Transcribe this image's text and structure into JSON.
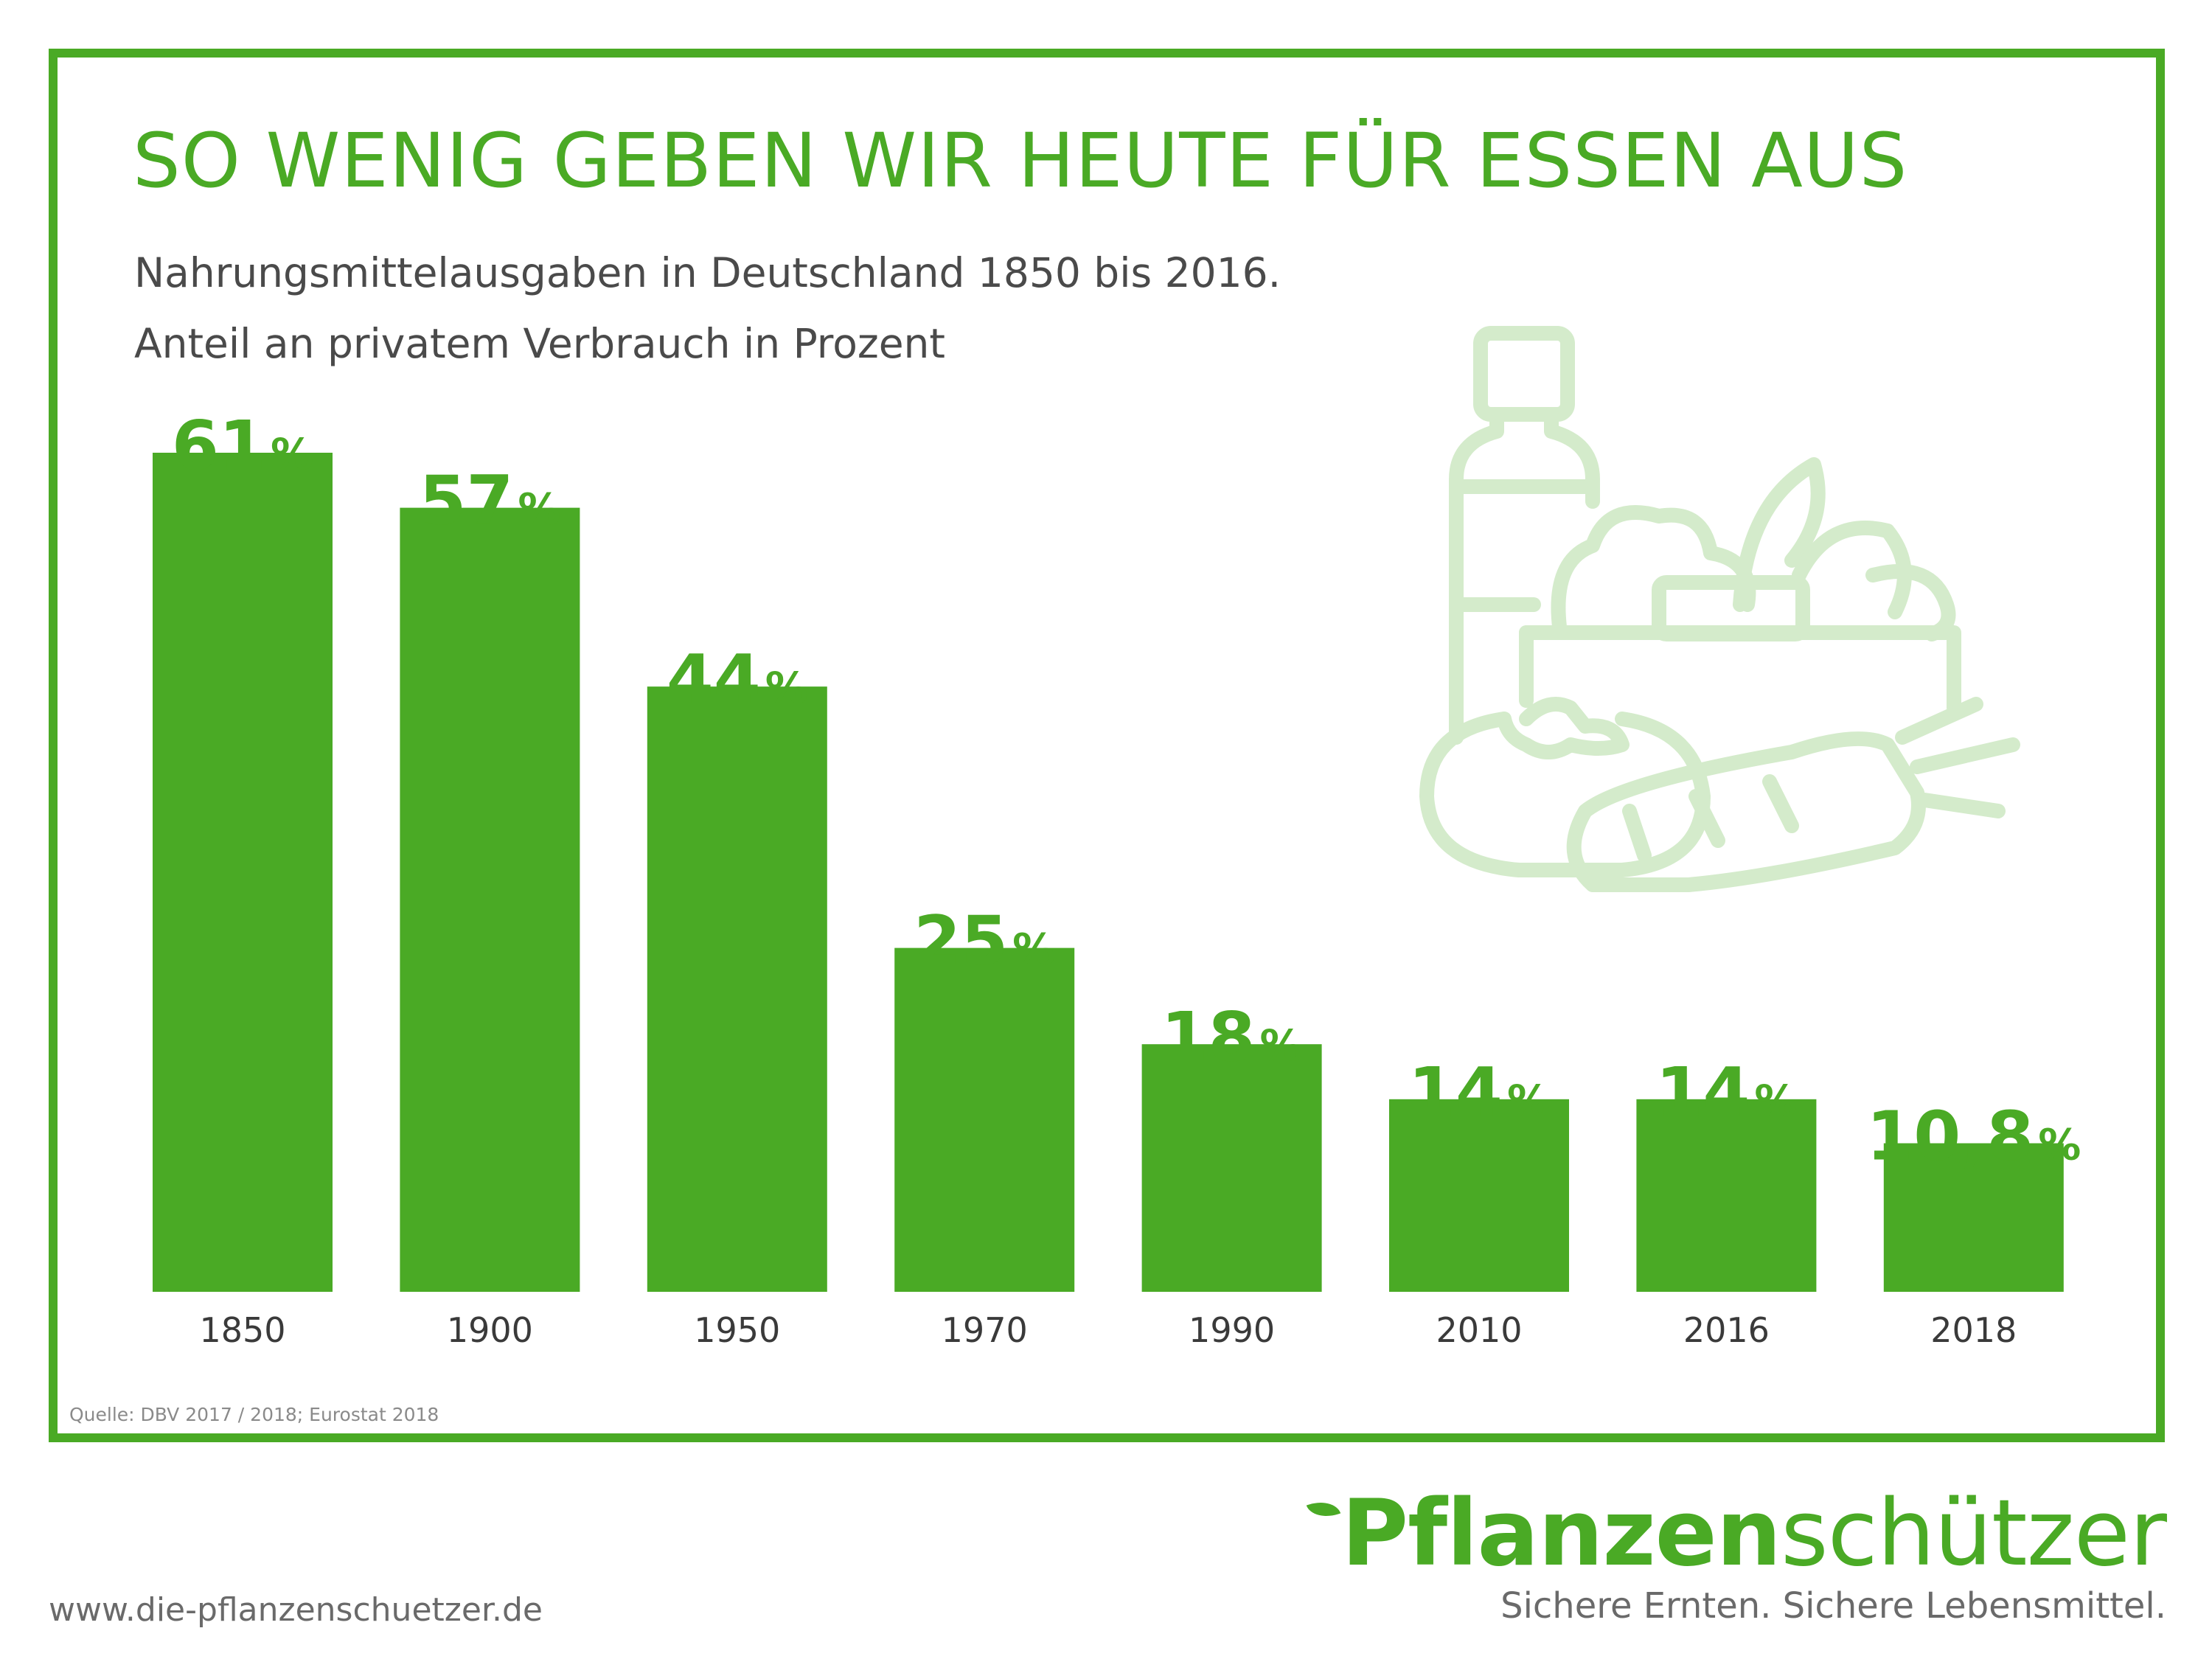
{
  "header": {
    "title": "SO WENIG GEBEN WIR HEUTE FÜR ESSEN AUS",
    "subtitle_line1": "Nahrungsmittelausgaben in Deutschland 1850 bis 2016.",
    "subtitle_line2": "Anteil an privatem Verbrauch in Prozent"
  },
  "source": "Quelle: DBV 2017 / 2018; Eurostat 2018",
  "footer": {
    "website": "www.die-pflanzenschuetzer.de",
    "logo_bold": "Pflanzen",
    "logo_light": "schützer",
    "tagline": "Sichere Ernten. Sichere Lebensmittel."
  },
  "illustration": {
    "icon": "groceries-bag-icon",
    "color": "#d4ebcb"
  },
  "colors": {
    "accent": "#4aaa25",
    "text": "#4a4a4a"
  },
  "chart_data": {
    "type": "bar",
    "categories": [
      "1850",
      "1900",
      "1950",
      "1970",
      "1990",
      "2010",
      "2016",
      "2018"
    ],
    "values": [
      61,
      57,
      44,
      25,
      18,
      14,
      14,
      10.8
    ],
    "value_labels": [
      "61",
      "57",
      "44",
      "25",
      "18",
      "14",
      "14",
      "10,8"
    ],
    "unit": "%",
    "ylim": [
      0,
      61
    ],
    "grid": false,
    "legend": "none",
    "bar_color": "#4aaa25"
  }
}
